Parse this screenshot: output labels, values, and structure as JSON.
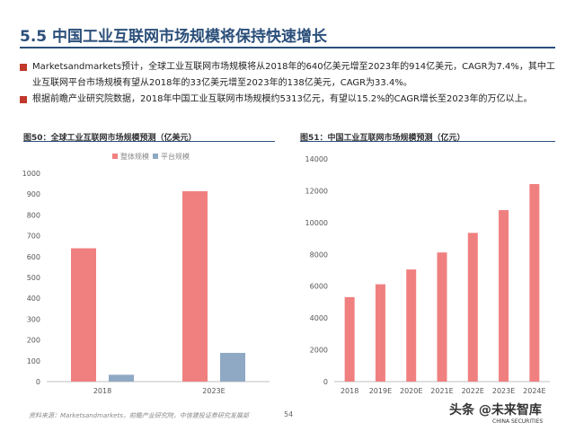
{
  "slide": {
    "title": "5.5 中国工业互联网市场规模将保持快速增长",
    "bullets": [
      "Marketsandmarkets预计，全球工业互联网市场规模将从2018年的640亿美元增至2023年的914亿美元，CAGR为7.4%，其中工业互联网平台市场规模有望从2018年的33亿美元增至2023年的138亿美元，CAGR为33.4%。",
      "根据前瞻产业研究院数据，2018年中国工业互联网市场规模约5313亿元，有望以15.2%的CAGR增长至2023年的万亿以上。"
    ],
    "footer_source": "资料来源：Marketsandmarkets，前瞻产业研究院，中信建投证券研究发展部",
    "page_number": "54",
    "watermark": "头条 @未来智库",
    "watermark_sub": "CHINA SECURITIES"
  },
  "chart_data": [
    {
      "type": "bar",
      "title": "图50：全球工业互联网市场规模预测（亿美元）",
      "categories": [
        "2018",
        "2023E"
      ],
      "series": [
        {
          "name": "整体规模",
          "values": [
            640,
            914
          ],
          "color": "#f08080"
        },
        {
          "name": "平台规模",
          "values": [
            33,
            138
          ],
          "color": "#8fa9c4"
        }
      ],
      "ylim": [
        0,
        1000
      ],
      "yticks": [
        0,
        100,
        200,
        300,
        400,
        500,
        600,
        700,
        800,
        900,
        1000
      ],
      "grid": false,
      "legend": "top"
    },
    {
      "type": "bar",
      "title": "图51：中国工业互联网市场规模预测（亿元）",
      "categories": [
        "2018",
        "2019E",
        "2020E",
        "2021E",
        "2022E",
        "2023E",
        "2024E"
      ],
      "series": [
        {
          "values": [
            5313,
            6120,
            7050,
            8120,
            9350,
            10780,
            12420
          ],
          "color": "#f08080"
        }
      ],
      "ylim": [
        0,
        14000
      ],
      "yticks": [
        0,
        2000,
        4000,
        6000,
        8000,
        10000,
        12000,
        14000
      ],
      "grid": false
    }
  ]
}
